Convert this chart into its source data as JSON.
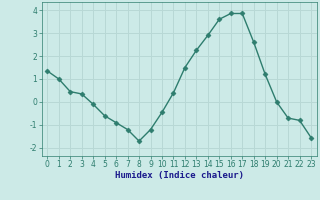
{
  "x": [
    0,
    1,
    2,
    3,
    4,
    5,
    6,
    7,
    8,
    9,
    10,
    11,
    12,
    13,
    14,
    15,
    16,
    17,
    18,
    19,
    20,
    21,
    22,
    23
  ],
  "y": [
    1.35,
    1.0,
    0.45,
    0.35,
    -0.1,
    -0.6,
    -0.9,
    -1.2,
    -1.7,
    -1.2,
    -0.45,
    0.4,
    1.5,
    2.25,
    2.9,
    3.6,
    3.85,
    3.85,
    2.6,
    1.2,
    0.0,
    -0.7,
    -0.8,
    -1.55
  ],
  "xlabel": "Humidex (Indice chaleur)",
  "xlim": [
    -0.5,
    23.5
  ],
  "ylim": [
    -2.35,
    4.35
  ],
  "yticks": [
    -2,
    -1,
    0,
    1,
    2,
    3,
    4
  ],
  "xticks": [
    0,
    1,
    2,
    3,
    4,
    5,
    6,
    7,
    8,
    9,
    10,
    11,
    12,
    13,
    14,
    15,
    16,
    17,
    18,
    19,
    20,
    21,
    22,
    23
  ],
  "line_color": "#2e7d6e",
  "bg_color": "#cceae7",
  "grid_color": "#b8d8d5",
  "fig_bg": "#cceae7",
  "marker": "D",
  "marker_size": 2.5,
  "linewidth": 1.0,
  "tick_fontsize": 5.5,
  "xlabel_fontsize": 6.5,
  "xlabel_color": "#1a1a8c"
}
